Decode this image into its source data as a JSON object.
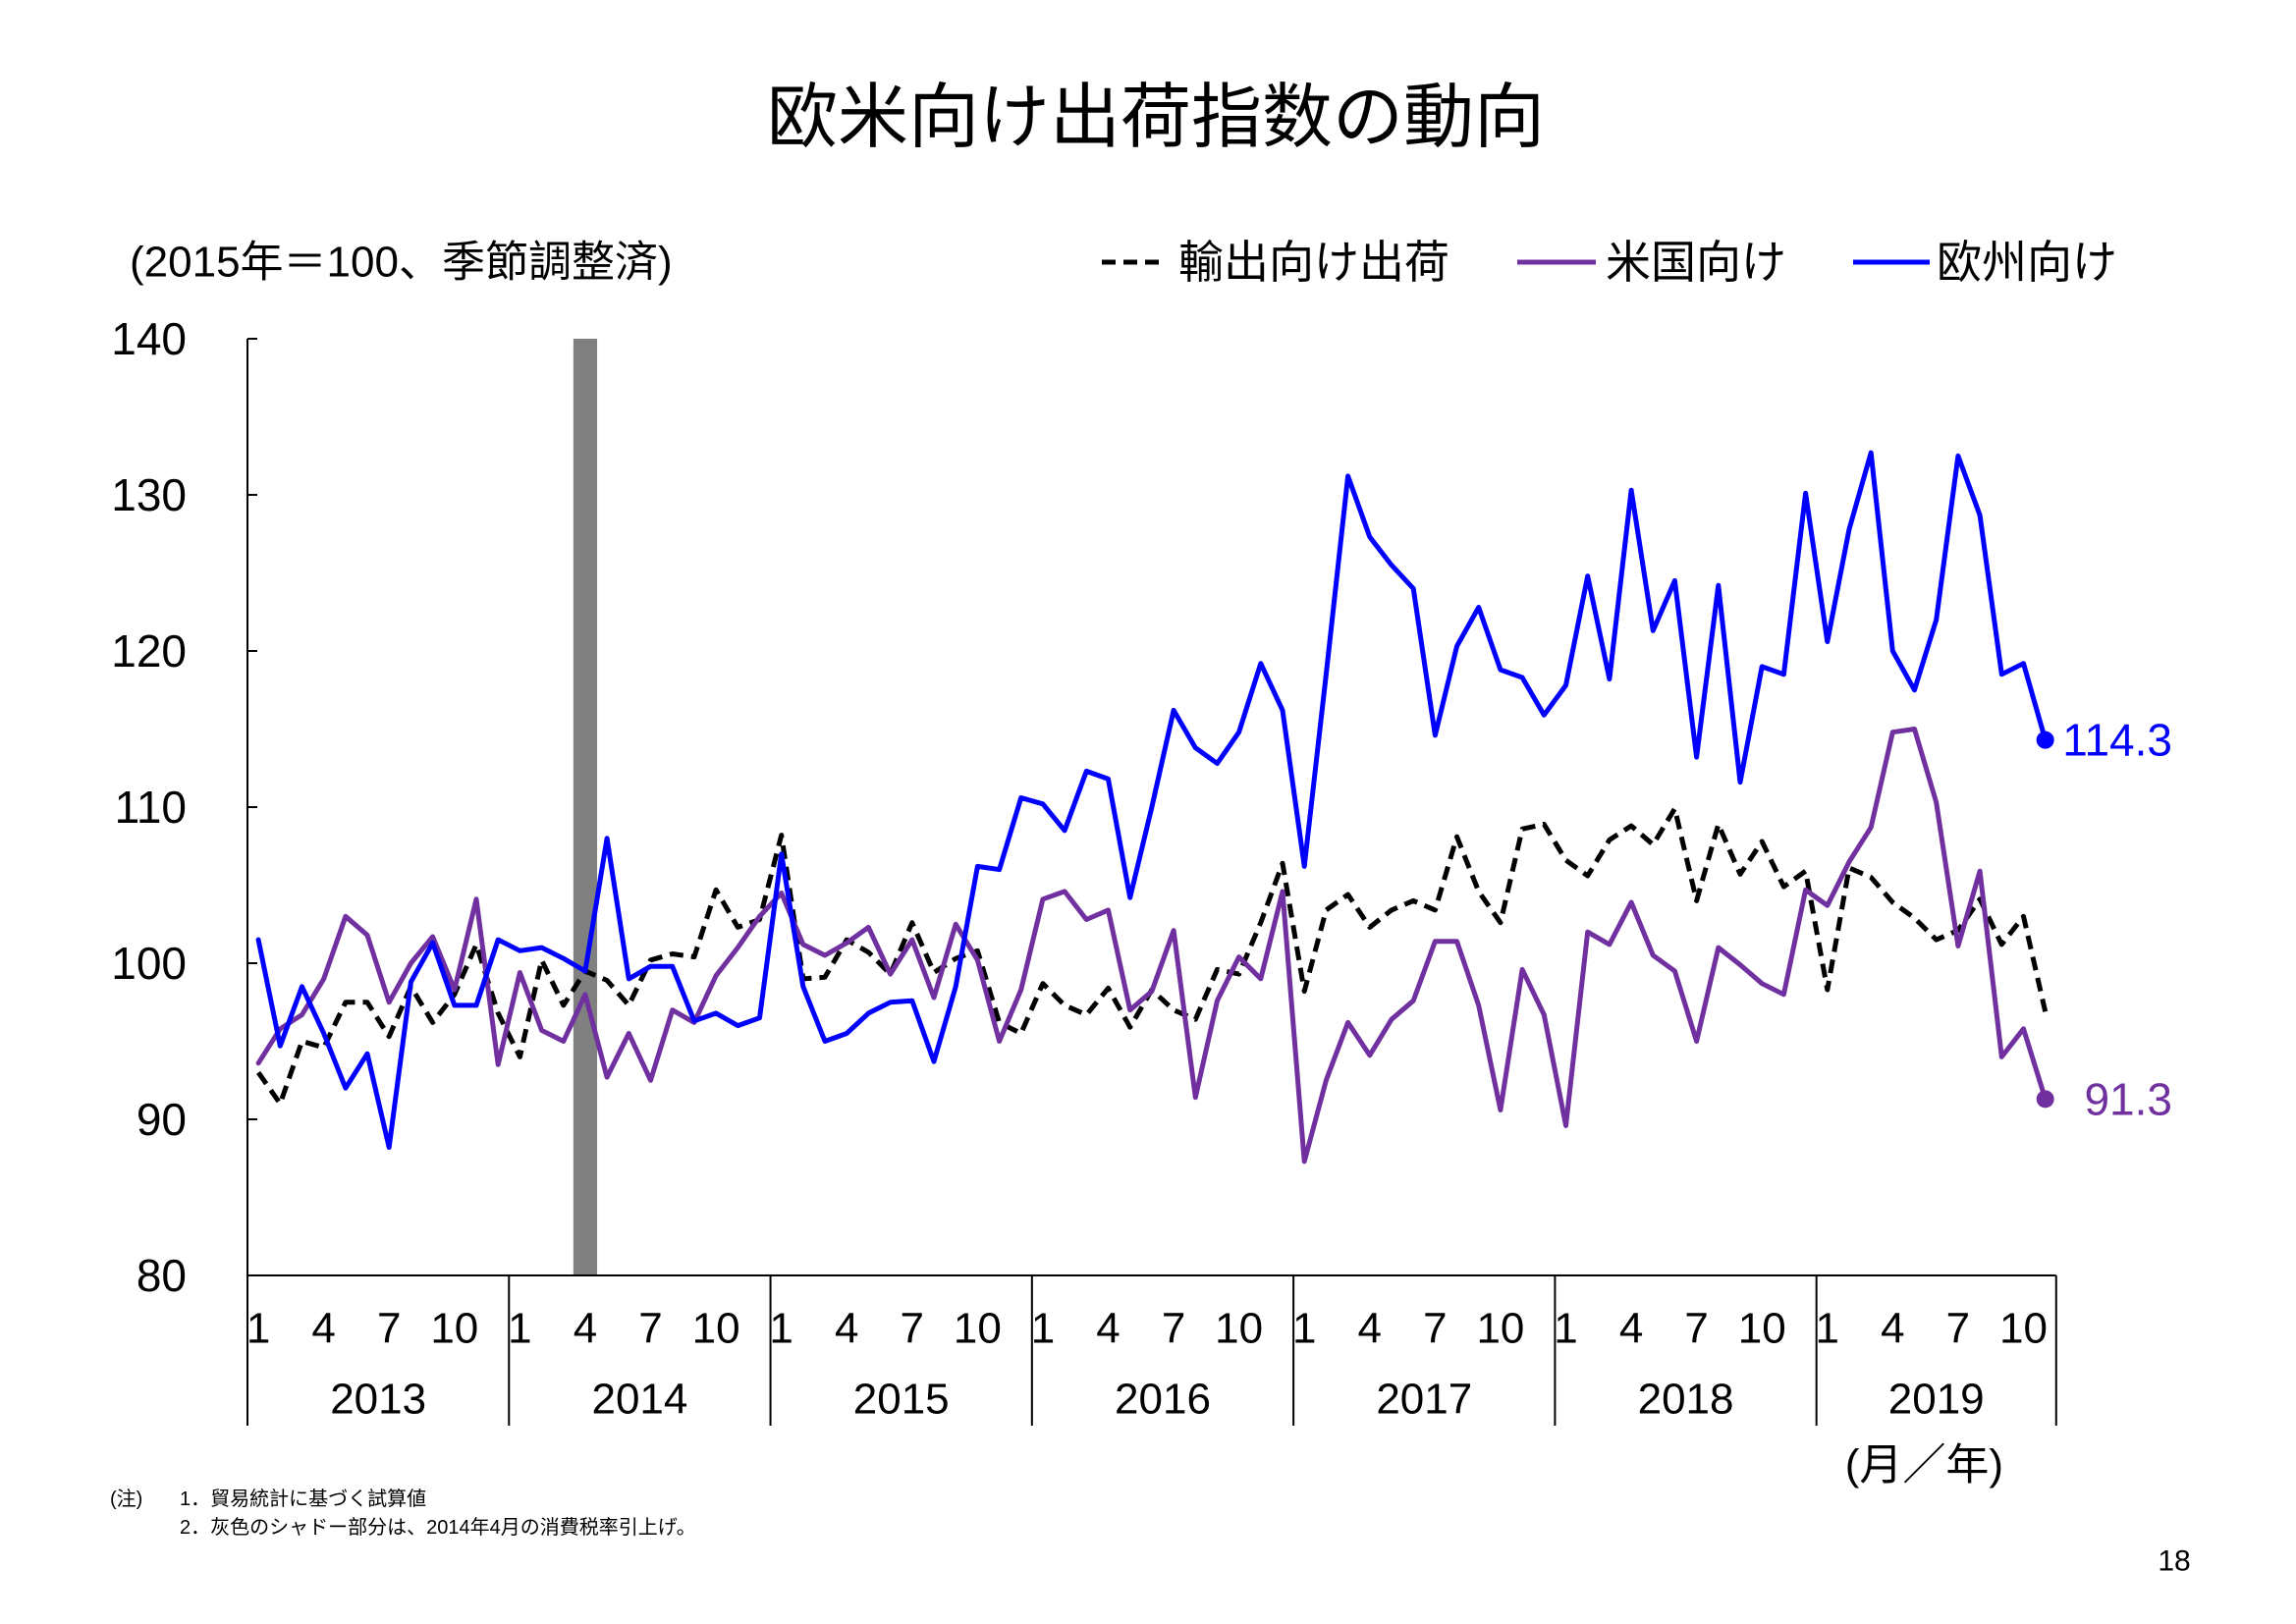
{
  "chart_data": {
    "type": "line",
    "title": "欧米向け出荷指数の動向",
    "subtitle": "(2015年＝100、季節調整済)",
    "xlabel": "(月／年)",
    "ylim": [
      80,
      140
    ],
    "yticks": [
      140,
      130,
      120,
      110,
      100,
      90,
      80
    ],
    "years": [
      "2013",
      "2014",
      "2015",
      "2016",
      "2017",
      "2018",
      "2019"
    ],
    "month_ticks": [
      "1",
      "4",
      "7",
      "10"
    ],
    "x": [
      "2013/1",
      "2013/2",
      "2013/3",
      "2013/4",
      "2013/5",
      "2013/6",
      "2013/7",
      "2013/8",
      "2013/9",
      "2013/10",
      "2013/11",
      "2013/12",
      "2014/1",
      "2014/2",
      "2014/3",
      "2014/4",
      "2014/5",
      "2014/6",
      "2014/7",
      "2014/8",
      "2014/9",
      "2014/10",
      "2014/11",
      "2014/12",
      "2015/1",
      "2015/2",
      "2015/3",
      "2015/4",
      "2015/5",
      "2015/6",
      "2015/7",
      "2015/8",
      "2015/9",
      "2015/10",
      "2015/11",
      "2015/12",
      "2016/1",
      "2016/2",
      "2016/3",
      "2016/4",
      "2016/5",
      "2016/6",
      "2016/7",
      "2016/8",
      "2016/9",
      "2016/10",
      "2016/11",
      "2016/12",
      "2017/1",
      "2017/2",
      "2017/3",
      "2017/4",
      "2017/5",
      "2017/6",
      "2017/7",
      "2017/8",
      "2017/9",
      "2017/10",
      "2017/11",
      "2017/12",
      "2018/1",
      "2018/2",
      "2018/3",
      "2018/4",
      "2018/5",
      "2018/6",
      "2018/7",
      "2018/8",
      "2018/9",
      "2018/10",
      "2018/11",
      "2018/12",
      "2019/1",
      "2019/2",
      "2019/3",
      "2019/4",
      "2019/5",
      "2019/6",
      "2019/7",
      "2019/8",
      "2019/9",
      "2019/10",
      "2019/11"
    ],
    "series": [
      {
        "name": "輸出向け出荷",
        "color": "#000000",
        "style": "dashed",
        "values": [
          93.0,
          91.0,
          95.0,
          94.6,
          97.5,
          97.5,
          95.3,
          98.5,
          96.2,
          98.0,
          101.2,
          96.8,
          94.0,
          100.2,
          97.3,
          99.5,
          98.9,
          97.3,
          100.2,
          100.6,
          100.4,
          104.7,
          102.3,
          102.8,
          108.2,
          99.0,
          99.1,
          101.5,
          100.7,
          99.3,
          102.6,
          99.4,
          100.3,
          100.8,
          96.2,
          95.5,
          98.7,
          97.3,
          96.7,
          98.4,
          95.9,
          98.3,
          97.0,
          96.4,
          99.6,
          99.3,
          102.6,
          106.4,
          98.2,
          103.4,
          104.4,
          102.3,
          103.4,
          104.0,
          103.4,
          108.1,
          104.6,
          102.6,
          108.6,
          108.9,
          106.6,
          105.6,
          107.9,
          108.8,
          107.6,
          109.9,
          104.0,
          108.9,
          105.7,
          107.8,
          104.9,
          105.9,
          98.3,
          106.1,
          105.5,
          103.9,
          102.9,
          101.5,
          102.1,
          104.1,
          101.2,
          103.0,
          96.9
        ]
      },
      {
        "name": "米国向け",
        "color": "#7030A0",
        "style": "solid",
        "end_label": "91.3",
        "values": [
          93.6,
          95.8,
          96.7,
          99.0,
          103.0,
          101.8,
          97.5,
          100.0,
          101.7,
          98.3,
          104.1,
          93.5,
          99.4,
          95.7,
          95.0,
          98.0,
          92.7,
          95.5,
          92.5,
          97.0,
          96.2,
          99.2,
          101.0,
          103.0,
          104.5,
          101.2,
          100.5,
          101.3,
          102.3,
          99.3,
          101.5,
          97.8,
          102.5,
          100.2,
          95.0,
          98.3,
          104.1,
          104.6,
          102.8,
          103.4,
          97.0,
          98.2,
          102.1,
          91.4,
          97.6,
          100.4,
          99.0,
          104.6,
          87.3,
          92.5,
          96.2,
          94.1,
          96.4,
          97.6,
          101.4,
          101.4,
          97.3,
          90.6,
          99.6,
          96.7,
          89.6,
          102.0,
          101.2,
          103.9,
          100.5,
          99.5,
          95.0,
          101.0,
          99.9,
          98.7,
          98.0,
          104.7,
          103.7,
          106.5,
          108.7,
          114.8,
          115.0,
          110.3,
          101.1,
          105.9,
          94.0,
          95.8,
          91.3
        ]
      },
      {
        "name": "欧州向け",
        "color": "#0000FF",
        "style": "solid",
        "end_label": "114.3",
        "values": [
          101.5,
          94.7,
          98.5,
          95.5,
          92.0,
          94.2,
          88.2,
          98.8,
          101.3,
          97.3,
          97.3,
          101.5,
          100.8,
          101.0,
          100.3,
          99.5,
          108.0,
          99.0,
          99.8,
          99.8,
          96.3,
          96.8,
          96.0,
          96.5,
          107.0,
          98.5,
          95.0,
          95.5,
          96.8,
          97.5,
          97.6,
          93.7,
          98.5,
          106.2,
          106.0,
          110.6,
          110.2,
          108.5,
          112.3,
          111.8,
          104.2,
          110.0,
          116.2,
          113.8,
          112.8,
          114.8,
          119.2,
          116.2,
          106.2,
          118.5,
          131.2,
          127.3,
          125.5,
          124.0,
          114.6,
          120.3,
          122.8,
          118.8,
          118.3,
          115.9,
          117.8,
          124.8,
          118.2,
          130.3,
          121.3,
          124.5,
          113.2,
          124.2,
          111.6,
          119.0,
          118.5,
          130.1,
          120.6,
          127.8,
          132.7,
          120.0,
          117.5,
          122.0,
          132.5,
          128.7,
          118.5,
          119.2,
          114.3
        ]
      }
    ],
    "shaded_period": "2014/4",
    "shade_color": "#808080",
    "grid": false,
    "legend_position": "top-right"
  },
  "notes": {
    "label": "(注)",
    "items": [
      "1．貿易統計に基づく試算値",
      "2．灰色のシャドー部分は、2014年4月の消費税率引上げ。"
    ]
  },
  "page_number": "18"
}
